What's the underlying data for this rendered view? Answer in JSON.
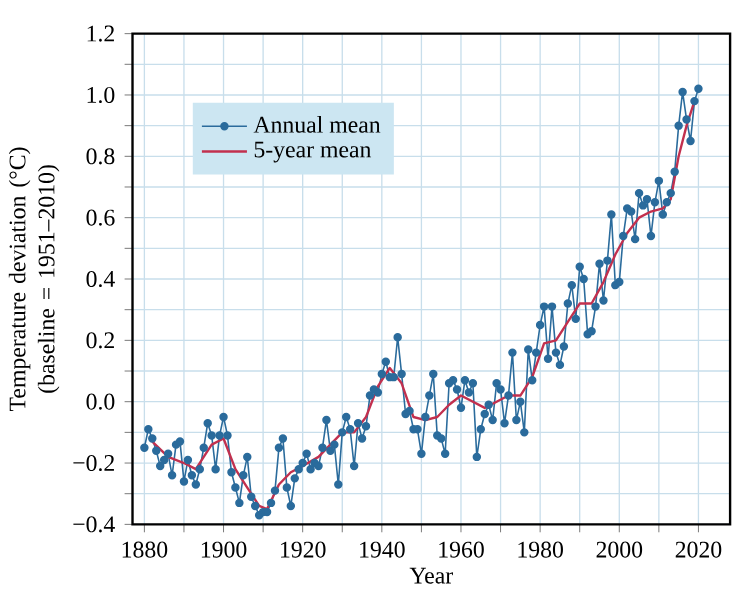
{
  "chart_data": {
    "type": "line",
    "xlabel": "Year",
    "ylabel": "Temperature deviation (°C) (baseline = 1951–2010)",
    "xlim": [
      1877,
      2028
    ],
    "ylim": [
      -0.4,
      1.2
    ],
    "xticks": [
      1880,
      {
        "value": 1890,
        "label": null
      },
      1900,
      {
        "value": 1910,
        "label": null
      },
      1920,
      {
        "value": 1930,
        "label": null
      },
      1940,
      {
        "value": 1950,
        "label": null
      },
      1960,
      {
        "value": 1970,
        "label": null
      },
      1980,
      {
        "value": 1990,
        "label": null
      },
      2000,
      {
        "value": 2010,
        "label": null
      },
      2020
    ],
    "yticks": [
      {
        "value": -0.4,
        "label": "−0.4"
      },
      {
        "value": -0.3,
        "label": null
      },
      {
        "value": -0.2,
        "label": "−0.2"
      },
      {
        "value": -0.1,
        "label": null
      },
      {
        "value": 0.0,
        "label": "0.0"
      },
      {
        "value": 0.1,
        "label": null
      },
      {
        "value": 0.2,
        "label": "0.2"
      },
      {
        "value": 0.3,
        "label": null
      },
      {
        "value": 0.4,
        "label": "0.4"
      },
      {
        "value": 0.5,
        "label": null
      },
      {
        "value": 0.6,
        "label": "0.6"
      },
      {
        "value": 0.7,
        "label": null
      },
      {
        "value": 0.8,
        "label": "0.8"
      },
      {
        "value": 0.9,
        "label": null
      },
      {
        "value": 1.0,
        "label": "1.0"
      },
      {
        "value": 1.1,
        "label": null
      },
      {
        "value": 1.2,
        "label": "1.2"
      }
    ],
    "grid": true,
    "legend": "top left",
    "series": [
      {
        "name": "Annual mean",
        "color": "#2a6b9c",
        "marker": "circle",
        "x": [
          1880,
          1881,
          1882,
          1883,
          1884,
          1885,
          1886,
          1887,
          1888,
          1889,
          1890,
          1891,
          1892,
          1893,
          1894,
          1895,
          1896,
          1897,
          1898,
          1899,
          1900,
          1901,
          1902,
          1903,
          1904,
          1905,
          1906,
          1907,
          1908,
          1909,
          1910,
          1911,
          1912,
          1913,
          1914,
          1915,
          1916,
          1917,
          1918,
          1919,
          1920,
          1921,
          1922,
          1923,
          1924,
          1925,
          1926,
          1927,
          1928,
          1929,
          1930,
          1931,
          1932,
          1933,
          1934,
          1935,
          1936,
          1937,
          1938,
          1939,
          1940,
          1941,
          1942,
          1943,
          1944,
          1945,
          1946,
          1947,
          1948,
          1949,
          1950,
          1951,
          1952,
          1953,
          1954,
          1955,
          1956,
          1957,
          1958,
          1959,
          1960,
          1961,
          1962,
          1963,
          1964,
          1965,
          1966,
          1967,
          1968,
          1969,
          1970,
          1971,
          1972,
          1973,
          1974,
          1975,
          1976,
          1977,
          1978,
          1979,
          1980,
          1981,
          1982,
          1983,
          1984,
          1985,
          1986,
          1987,
          1988,
          1989,
          1990,
          1991,
          1992,
          1993,
          1994,
          1995,
          1996,
          1997,
          1998,
          1999,
          2000,
          2001,
          2002,
          2003,
          2004,
          2005,
          2006,
          2007,
          2008,
          2009,
          2010,
          2011,
          2012,
          2013,
          2014,
          2015,
          2016,
          2017,
          2018,
          2019,
          2020
        ],
        "values": [
          -0.15,
          -0.09,
          -0.12,
          -0.16,
          -0.21,
          -0.19,
          -0.17,
          -0.24,
          -0.14,
          -0.13,
          -0.26,
          -0.19,
          -0.24,
          -0.27,
          -0.22,
          -0.15,
          -0.07,
          -0.11,
          -0.22,
          -0.11,
          -0.05,
          -0.11,
          -0.23,
          -0.28,
          -0.33,
          -0.24,
          -0.18,
          -0.31,
          -0.34,
          -0.37,
          -0.36,
          -0.36,
          -0.33,
          -0.29,
          -0.15,
          -0.12,
          -0.28,
          -0.34,
          -0.25,
          -0.22,
          -0.2,
          -0.17,
          -0.22,
          -0.2,
          -0.21,
          -0.15,
          -0.06,
          -0.16,
          -0.14,
          -0.27,
          -0.1,
          -0.05,
          -0.09,
          -0.21,
          -0.07,
          -0.12,
          -0.08,
          0.02,
          0.04,
          0.03,
          0.09,
          0.13,
          0.08,
          0.08,
          0.21,
          0.09,
          -0.04,
          -0.03,
          -0.09,
          -0.09,
          -0.17,
          -0.05,
          0.02,
          0.09,
          -0.11,
          -0.12,
          -0.17,
          0.06,
          0.07,
          0.04,
          -0.02,
          0.07,
          0.03,
          0.06,
          -0.18,
          -0.09,
          -0.04,
          -0.01,
          -0.06,
          0.06,
          0.04,
          -0.07,
          0.02,
          0.16,
          -0.06,
          0.0,
          -0.1,
          0.17,
          0.07,
          0.16,
          0.25,
          0.31,
          0.14,
          0.31,
          0.16,
          0.12,
          0.18,
          0.32,
          0.38,
          0.27,
          0.44,
          0.4,
          0.22,
          0.23,
          0.31,
          0.45,
          0.33,
          0.46,
          0.61,
          0.38,
          0.39,
          0.54,
          0.63,
          0.62,
          0.53,
          0.68,
          0.64,
          0.66,
          0.54,
          0.65,
          0.72,
          0.61,
          0.65,
          0.68,
          0.75,
          0.9,
          1.01,
          0.92,
          0.85,
          0.98,
          1.02
        ]
      },
      {
        "name": "5-year mean",
        "color": "#c2304e",
        "marker": "none",
        "x": [
          1882,
          1886,
          1890,
          1893,
          1897,
          1900,
          1903,
          1906,
          1909,
          1911,
          1914,
          1917,
          1920,
          1924,
          1927,
          1930,
          1933,
          1936,
          1939,
          1942,
          1945,
          1948,
          1951,
          1954,
          1957,
          1960,
          1963,
          1966,
          1969,
          1972,
          1975,
          1978,
          1981,
          1984,
          1987,
          1990,
          1993,
          1996,
          1999,
          2002,
          2005,
          2008,
          2011,
          2013,
          2015,
          2017,
          2019
        ],
        "values": [
          -0.13,
          -0.18,
          -0.2,
          -0.22,
          -0.14,
          -0.12,
          -0.22,
          -0.28,
          -0.34,
          -0.35,
          -0.27,
          -0.23,
          -0.21,
          -0.18,
          -0.14,
          -0.1,
          -0.1,
          -0.05,
          0.05,
          0.11,
          0.06,
          -0.05,
          -0.06,
          -0.05,
          -0.01,
          0.02,
          0.0,
          -0.02,
          0.0,
          0.02,
          0.02,
          0.08,
          0.19,
          0.2,
          0.26,
          0.32,
          0.32,
          0.39,
          0.48,
          0.55,
          0.6,
          0.62,
          0.63,
          0.66,
          0.8,
          0.9,
          0.98
        ]
      }
    ]
  }
}
